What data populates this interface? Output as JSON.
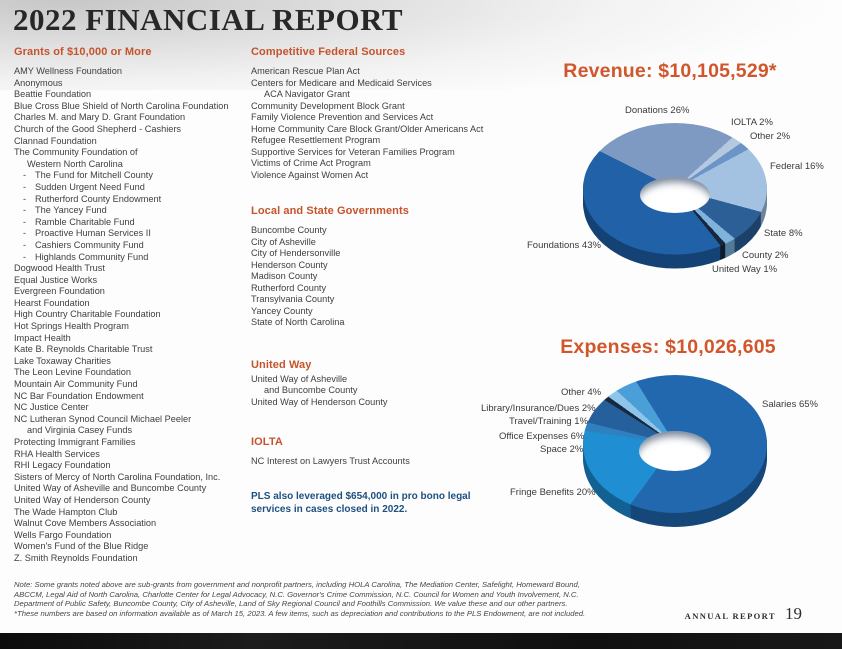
{
  "title": "2022 FINANCIAL REPORT",
  "sections": {
    "grants": {
      "header": "Grants of $10,000 or More",
      "items": [
        {
          "t": "AMY Wellness Foundation"
        },
        {
          "t": "Anonymous"
        },
        {
          "t": "Beattie Foundation"
        },
        {
          "t": "Blue Cross Blue Shield of North Carolina Foundation"
        },
        {
          "t": "Charles M. and Mary D. Grant Foundation"
        },
        {
          "t": "Church of the Good Shepherd - Cashiers"
        },
        {
          "t": "Clannad Foundation"
        },
        {
          "t": "The Community Foundation of"
        },
        {
          "t": "Western North Carolina",
          "k": "ind"
        },
        {
          "t": "The Fund for Mitchell County",
          "k": "dash"
        },
        {
          "t": "Sudden Urgent Need Fund",
          "k": "dash"
        },
        {
          "t": "Rutherford County Endowment",
          "k": "dash"
        },
        {
          "t": "The Yancey Fund",
          "k": "dash"
        },
        {
          "t": "Ramble Charitable Fund",
          "k": "dash"
        },
        {
          "t": "Proactive Human Services II",
          "k": "dash"
        },
        {
          "t": "Cashiers Community Fund",
          "k": "dash"
        },
        {
          "t": "Highlands Community Fund",
          "k": "dash"
        },
        {
          "t": "Dogwood Health Trust"
        },
        {
          "t": "Equal Justice Works"
        },
        {
          "t": "Evergreen Foundation"
        },
        {
          "t": "Hearst Foundation"
        },
        {
          "t": "High Country Charitable Foundation"
        },
        {
          "t": "Hot Springs Health Program"
        },
        {
          "t": "Impact Health"
        },
        {
          "t": "Kate B. Reynolds Charitable Trust"
        },
        {
          "t": "Lake Toxaway Charities"
        },
        {
          "t": "The Leon Levine Foundation"
        },
        {
          "t": "Mountain Air Community Fund"
        },
        {
          "t": "NC Bar Foundation Endowment"
        },
        {
          "t": "NC Justice Center"
        },
        {
          "t": "NC Lutheran Synod Council Michael Peeler"
        },
        {
          "t": "and Virginia Casey Funds",
          "k": "ind"
        },
        {
          "t": "Protecting Immigrant Families"
        },
        {
          "t": "RHA Health Services"
        },
        {
          "t": "RHI Legacy Foundation"
        },
        {
          "t": "Sisters of Mercy of North Carolina Foundation, Inc."
        },
        {
          "t": "United Way of Asheville and Buncombe County"
        },
        {
          "t": "United Way of Henderson County"
        },
        {
          "t": "The Wade Hampton Club"
        },
        {
          "t": "Walnut Cove Members Association"
        },
        {
          "t": "Wells Fargo Foundation"
        },
        {
          "t": "Women's Fund of the Blue Ridge"
        },
        {
          "t": "Z. Smith Reynolds Foundation"
        }
      ]
    },
    "federal": {
      "header": "Competitive Federal Sources",
      "items": [
        {
          "t": "American Rescue Plan Act"
        },
        {
          "t": "Centers for Medicare and Medicaid Services"
        },
        {
          "t": "ACA Navigator Grant",
          "k": "ind"
        },
        {
          "t": "Community Development Block Grant"
        },
        {
          "t": "Family Violence Prevention and Services Act"
        },
        {
          "t": "Home Community Care Block Grant/Older Americans Act"
        },
        {
          "t": "Refugee Resettlement Program"
        },
        {
          "t": "Supportive Services for Veteran Families Program"
        },
        {
          "t": "Victims of Crime Act Program"
        },
        {
          "t": "Violence Against Women Act"
        }
      ]
    },
    "local_state": {
      "header": "Local and State Governments",
      "items": [
        {
          "t": "Buncombe County"
        },
        {
          "t": "City of Asheville"
        },
        {
          "t": "City of Hendersonville"
        },
        {
          "t": "Henderson County"
        },
        {
          "t": "Madison County"
        },
        {
          "t": "Rutherford County"
        },
        {
          "t": "Transylvania County"
        },
        {
          "t": "Yancey County"
        },
        {
          "t": "State of North Carolina"
        }
      ]
    },
    "united_way": {
      "header": "United Way",
      "items": [
        {
          "t": "United Way of Asheville"
        },
        {
          "t": "and Buncombe County",
          "k": "ind"
        },
        {
          "t": "United Way of Henderson County"
        }
      ]
    },
    "iolta": {
      "header": "IOLTA",
      "items": [
        {
          "t": "NC Interest on Lawyers Trust Accounts"
        }
      ]
    }
  },
  "callout": "PLS also leveraged $654,000 in pro bono legal services in cases closed in 2022.",
  "chart_data": [
    {
      "type": "pie",
      "donut": true,
      "title": "Revenue: $10,105,529*",
      "labels": [
        "Donations",
        "IOLTA",
        "Other",
        "Federal",
        "State",
        "County",
        "United Way",
        "Foundations"
      ],
      "values": [
        26,
        2,
        2,
        16,
        8,
        2,
        1,
        43
      ],
      "label_texts": [
        "Donations 26%",
        "IOLTA 2%",
        "Other 2%",
        "Federal 16%",
        "State 8%",
        "County 2%",
        "United Way 1%",
        "Foundations 43%"
      ],
      "colors": [
        "#7e9ac2",
        "#b4c8e0",
        "#6d94c7",
        "#a3c2e1",
        "#2d5f97",
        "#7fb3db",
        "#17273d",
        "#2161a8"
      ],
      "start_angle_deg": 305,
      "legend_position": "around"
    },
    {
      "type": "pie",
      "donut": true,
      "title": "Expenses: $10,026,605",
      "labels": [
        "Salaries",
        "Fringe Benefits",
        "Space",
        "Office Expenses",
        "Travel/Training",
        "Library/Insurance/Dues",
        "Other"
      ],
      "values": [
        65,
        20,
        2,
        6,
        1,
        2,
        4
      ],
      "label_texts": [
        "Salaries 65%",
        "Fringe Benefits 20%",
        "Space 2%",
        "Office Expenses 6%",
        "Travel/Training 1%",
        "Library/Insurance/Dues 2%",
        "Other 4%"
      ],
      "colors": [
        "#2268ae",
        "#1f8ed2",
        "#2f80bf",
        "#26609c",
        "#16293e",
        "#8cc5e9",
        "#4b9fd8"
      ],
      "start_angle_deg": 335,
      "legend_position": "around"
    }
  ],
  "note_lines": [
    "Note: Some grants noted above are sub-grants from government and nonprofit partners, including HOLA Carolina, The Mediation Center, Safelight, Homeward Bound,",
    "ABCCM, Legal Aid of North Carolina, Charlotte Center for Legal Advocacy, N.C. Governor's Crime Commission, N.C. Council for Women and Youth Involvement, N.C.",
    "Department of Public Safety, Buncombe County, City of Asheville, Land of Sky Regional Council and Foothills Commission. We value these and our other partners.",
    "*These numbers are based on information available as of March 15, 2023. A few items, such as depreciation and contributions to the PLS Endowment, are not included."
  ],
  "footer": {
    "label": "ANNUAL REPORT",
    "page_number": "19"
  },
  "colors": {
    "accent_orange": "#c5532b",
    "chart_title_orange": "#d1562b",
    "callout_blue": "#1d4f80"
  }
}
